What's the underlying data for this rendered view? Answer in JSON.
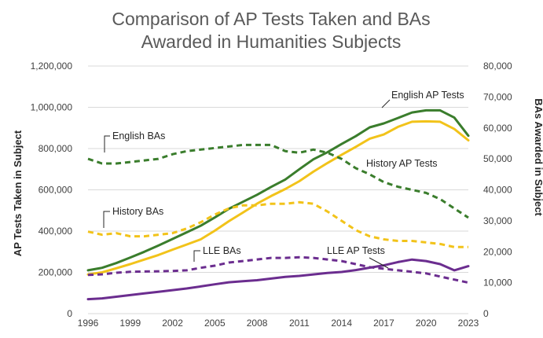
{
  "chart_data": {
    "type": "line",
    "title_lines": [
      "Comparison of AP Tests Taken and BAs",
      "Awarded in Humanities Subjects"
    ],
    "ylabel_left": "AP Tests Taken in Subject",
    "ylabel_right": "BAs Awarded in Subject",
    "ylim_left": [
      0,
      1200000
    ],
    "ylim_right": [
      0,
      80000
    ],
    "xlim": [
      1996,
      2023
    ],
    "x_ticks": [
      "1996",
      "1999",
      "2002",
      "2005",
      "2008",
      "2011",
      "2014",
      "2017",
      "2020",
      "2023"
    ],
    "y_ticks_left": [
      "0",
      "200,000",
      "400,000",
      "600,000",
      "800,000",
      "1,000,000",
      "1,200,000"
    ],
    "y_ticks_right": [
      "0",
      "10,000",
      "20,000",
      "30,000",
      "40,000",
      "50,000",
      "60,000",
      "70,000",
      "80,000"
    ],
    "grid": true,
    "x": [
      1996,
      1997,
      1998,
      1999,
      2000,
      2001,
      2002,
      2003,
      2004,
      2005,
      2006,
      2007,
      2008,
      2009,
      2010,
      2011,
      2012,
      2013,
      2014,
      2015,
      2016,
      2017,
      2018,
      2019,
      2020,
      2021,
      2022,
      2023
    ],
    "series": [
      {
        "name": "English AP Tests",
        "axis": "left",
        "color": "#3a7d2c",
        "dash": false,
        "values": [
          210000,
          222000,
          245000,
          272000,
          300000,
          330000,
          362000,
          394000,
          426000,
          466000,
          508000,
          542000,
          576000,
          614000,
          650000,
          700000,
          748000,
          782000,
          822000,
          860000,
          903000,
          922000,
          948000,
          975000,
          985000,
          985000,
          950000,
          862000
        ]
      },
      {
        "name": "History AP Tests",
        "axis": "left",
        "color": "#f2c31a",
        "dash": false,
        "values": [
          190000,
          200000,
          220000,
          240000,
          262000,
          284000,
          310000,
          335000,
          360000,
          402000,
          448000,
          490000,
          533000,
          570000,
          604000,
          642000,
          688000,
          730000,
          770000,
          808000,
          848000,
          868000,
          905000,
          930000,
          932000,
          930000,
          895000,
          840000
        ]
      },
      {
        "name": "LLE AP Tests",
        "axis": "left",
        "color": "#6b2d8f",
        "dash": false,
        "values": [
          70000,
          74000,
          82000,
          90000,
          98000,
          106000,
          114000,
          122000,
          132000,
          142000,
          152000,
          157000,
          162000,
          170000,
          178000,
          183000,
          190000,
          197000,
          202000,
          211000,
          223000,
          234000,
          250000,
          262000,
          255000,
          240000,
          210000,
          230000
        ]
      },
      {
        "name": "English BAs",
        "axis": "right",
        "color": "#3a7d2c",
        "dash": true,
        "values": [
          50000,
          48500,
          48500,
          49000,
          49500,
          50000,
          51500,
          52500,
          53000,
          53500,
          54000,
          54500,
          54500,
          54500,
          52500,
          52000,
          53000,
          52000,
          50000,
          47000,
          45000,
          42500,
          41000,
          40000,
          39000,
          37000,
          34000,
          31000
        ]
      },
      {
        "name": "History BAs",
        "axis": "right",
        "color": "#f2c31a",
        "dash": true,
        "values": [
          26500,
          25500,
          26000,
          25000,
          25000,
          25500,
          26000,
          27500,
          29500,
          32000,
          34000,
          35000,
          35000,
          35500,
          35500,
          36000,
          35500,
          33000,
          30000,
          27000,
          25000,
          24000,
          23500,
          23500,
          23000,
          22500,
          21500,
          21500
        ]
      },
      {
        "name": "LLE BAs",
        "axis": "right",
        "color": "#6b2d8f",
        "dash": true,
        "values": [
          12500,
          12700,
          13200,
          13500,
          13600,
          13700,
          13800,
          14000,
          14800,
          15500,
          16500,
          17000,
          17500,
          18000,
          18000,
          18200,
          18000,
          17500,
          17000,
          16000,
          15000,
          14500,
          14000,
          13500,
          13000,
          12000,
          11000,
          10000
        ]
      }
    ],
    "annotations": [
      {
        "text": "English AP Tests",
        "series": "English AP Tests"
      },
      {
        "text": "History  AP Tests",
        "series": "History AP Tests"
      },
      {
        "text": "LLE  AP Tests",
        "series": "LLE AP Tests"
      },
      {
        "text": "English BAs",
        "series": "English BAs"
      },
      {
        "text": "History  BAs",
        "series": "History BAs"
      },
      {
        "text": "LLE  BAs",
        "series": "LLE BAs"
      }
    ]
  }
}
